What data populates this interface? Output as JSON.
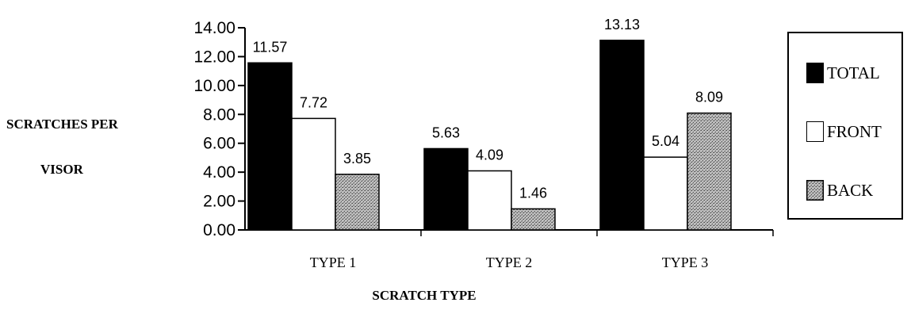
{
  "chart_data": {
    "type": "bar",
    "categories": [
      "TYPE 1",
      "TYPE 2",
      "TYPE 3"
    ],
    "series": [
      {
        "name": "TOTAL",
        "values": [
          11.57,
          5.63,
          13.13
        ],
        "color": "#000000",
        "pattern": "solid"
      },
      {
        "name": "FRONT",
        "values": [
          7.72,
          4.09,
          5.04
        ],
        "color": "#ffffff",
        "pattern": "solid"
      },
      {
        "name": "BACK",
        "values": [
          3.85,
          1.46,
          8.09
        ],
        "color": "#9a9a9a",
        "pattern": "stipple"
      }
    ],
    "xlabel": "SCRATCH TYPE",
    "ylabel_line1": "SCRATCHES PER",
    "ylabel_line2": "VISOR",
    "ylim": [
      0,
      14
    ],
    "yticks": [
      "0.00",
      "2.00",
      "4.00",
      "6.00",
      "8.00",
      "10.00",
      "12.00",
      "14.00"
    ],
    "grid": false,
    "legend_position": "right"
  }
}
